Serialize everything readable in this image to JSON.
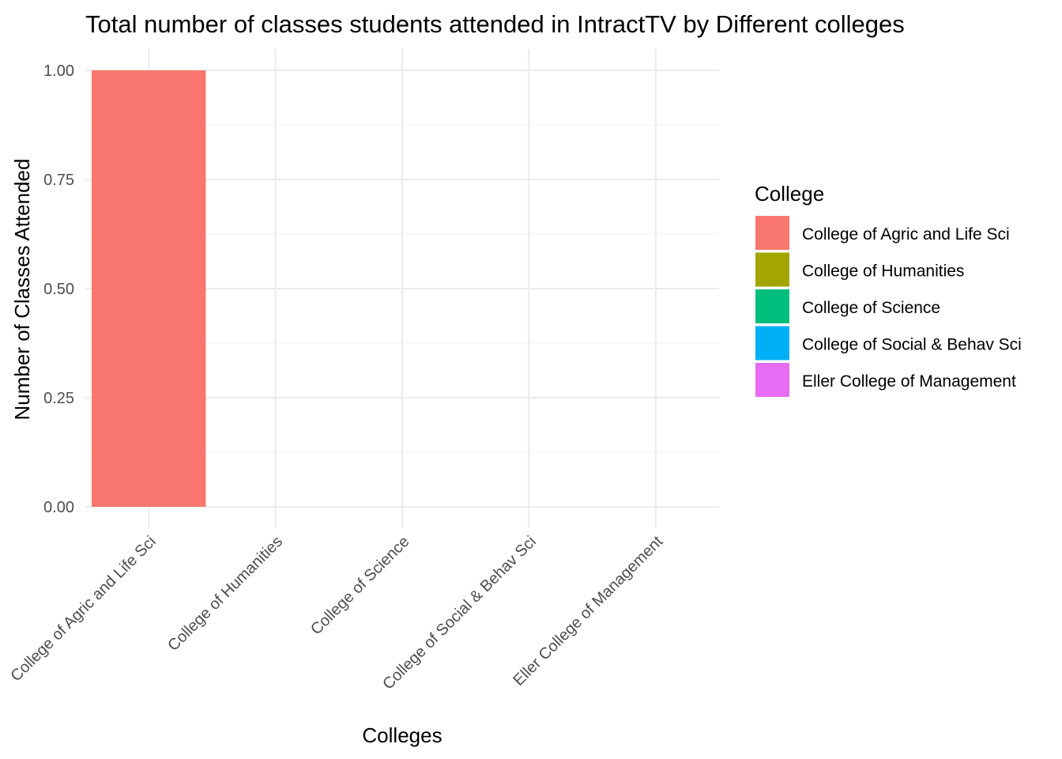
{
  "chart_data": {
    "type": "bar",
    "title": "Total number of classes students attended in  IntractTV by Different colleges",
    "xlabel": "Colleges",
    "ylabel": "Number of Classes Attended",
    "categories": [
      "College of Agric and Life Sci",
      "College of Humanities",
      "College of Science",
      "College of Social & Behav Sci",
      "Eller College of Management"
    ],
    "values": [
      1,
      0,
      0,
      0,
      0
    ],
    "colors": [
      "#F8766D",
      "#A3A500",
      "#00BF7D",
      "#00B0F6",
      "#E76BF3"
    ],
    "ylim": [
      0,
      1.0
    ],
    "y_ticks": [
      0.0,
      0.25,
      0.5,
      0.75,
      1.0
    ],
    "y_tick_labels": [
      "0.00",
      "0.25",
      "0.50",
      "0.75",
      "1.00"
    ],
    "grid": true,
    "legend": {
      "title": "College",
      "position": "right",
      "entries": [
        "College of Agric and Life Sci",
        "College of Humanities",
        "College of Science",
        "College of Social & Behav Sci",
        "Eller College of Management"
      ]
    }
  }
}
